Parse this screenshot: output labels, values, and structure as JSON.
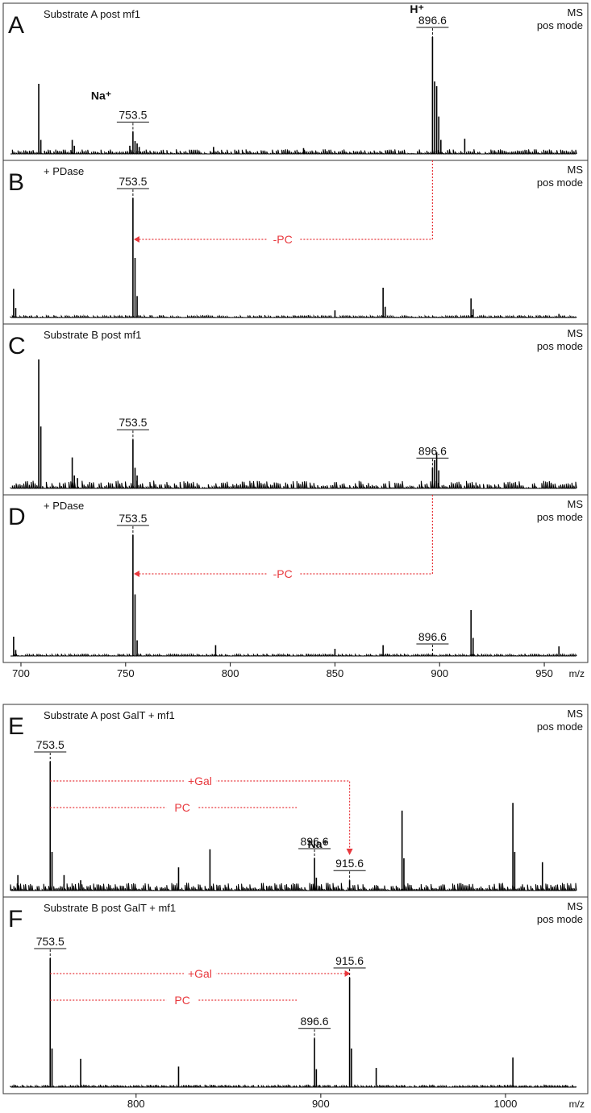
{
  "figure_group_1": {
    "x_tick_labels": [
      "700",
      "750",
      "800",
      "850",
      "900",
      "950"
    ],
    "x_unit": "m/z"
  },
  "figure_group_2": {
    "x_tick_labels": [
      "800",
      "900",
      "1000"
    ],
    "x_unit": "m/z"
  },
  "colors": {
    "trace": "#000000",
    "annotation": "#e8383d",
    "frame": "#333333"
  },
  "chart_data": [
    {
      "type": "line",
      "panel": "A",
      "label": "Substrate A post mf1",
      "mode_line1": "MS",
      "mode_line2": "pos mode",
      "xlim": [
        695,
        965
      ],
      "ylim": [
        0,
        100
      ],
      "x_ticks": [
        700,
        750,
        800,
        850,
        900,
        950
      ],
      "peaks": [
        [
          708.5,
          60
        ],
        [
          709.5,
          12
        ],
        [
          724.5,
          12
        ],
        [
          725.5,
          7
        ],
        [
          752,
          7
        ],
        [
          753.5,
          19
        ],
        [
          754.5,
          11
        ],
        [
          755.5,
          9
        ],
        [
          756.5,
          6
        ],
        [
          792,
          6
        ],
        [
          835,
          5
        ],
        [
          896.6,
          100
        ],
        [
          897.6,
          62
        ],
        [
          898.6,
          58
        ],
        [
          899.6,
          32
        ],
        [
          900.6,
          12
        ],
        [
          912,
          13
        ]
      ],
      "noise": 4,
      "peak_labels": [
        {
          "text": "753.5",
          "x": 753.5,
          "y": 19
        },
        {
          "text": "896.6",
          "x": 896.6,
          "y": 100
        }
      ],
      "ion_labels": [
        {
          "text": "Na⁺",
          "near": 753.5
        },
        {
          "text": "H⁺",
          "near": 896.6
        }
      ],
      "arrows": []
    },
    {
      "type": "line",
      "panel": "B",
      "label": "+ PDase",
      "mode_line1": "MS",
      "mode_line2": "pos mode",
      "xlim": [
        695,
        965
      ],
      "ylim": [
        0,
        100
      ],
      "x_ticks": [
        700,
        750,
        800,
        850,
        900,
        950
      ],
      "peaks": [
        [
          696.5,
          24
        ],
        [
          697.5,
          8
        ],
        [
          753.5,
          100
        ],
        [
          754.5,
          50
        ],
        [
          755.5,
          18
        ],
        [
          850,
          6
        ],
        [
          873,
          25
        ],
        [
          874,
          9
        ],
        [
          915,
          16
        ],
        [
          916,
          7
        ],
        [
          957,
          3
        ]
      ],
      "noise": 2,
      "peak_labels": [
        {
          "text": "753.5",
          "x": 753.5,
          "y": 100
        }
      ],
      "ion_labels": [],
      "arrows": [
        {
          "text": "-PC",
          "from": 896.6,
          "to": 753.5
        }
      ]
    },
    {
      "type": "line",
      "panel": "C",
      "label": "Substrate B post mf1",
      "mode_line1": "MS",
      "mode_line2": "pos mode",
      "xlim": [
        695,
        965
      ],
      "ylim": [
        0,
        100
      ],
      "x_ticks": [
        700,
        750,
        800,
        850,
        900,
        950
      ],
      "peaks": [
        [
          708.5,
          100
        ],
        [
          709.5,
          48
        ],
        [
          724.5,
          24
        ],
        [
          725.5,
          10
        ],
        [
          727,
          8
        ],
        [
          753.5,
          38
        ],
        [
          754.5,
          16
        ],
        [
          755.5,
          10
        ],
        [
          896.6,
          16
        ],
        [
          897.6,
          22
        ],
        [
          898.6,
          28
        ],
        [
          899.6,
          14
        ]
      ],
      "noise": 6,
      "peak_labels": [
        {
          "text": "753.5",
          "x": 753.5,
          "y": 38
        },
        {
          "text": "896.6",
          "x": 896.6,
          "y": 16
        }
      ],
      "ion_labels": [],
      "arrows": []
    },
    {
      "type": "line",
      "panel": "D",
      "label": "+ PDase",
      "mode_line1": "MS",
      "mode_line2": "pos mode",
      "xlim": [
        695,
        965
      ],
      "ylim": [
        0,
        100
      ],
      "x_ticks": [
        700,
        750,
        800,
        850,
        900,
        950
      ],
      "peaks": [
        [
          696.5,
          16
        ],
        [
          697.5,
          5
        ],
        [
          753.5,
          100
        ],
        [
          754.5,
          51
        ],
        [
          755.5,
          13
        ],
        [
          793,
          9
        ],
        [
          850,
          6
        ],
        [
          873,
          9
        ],
        [
          896.6,
          2
        ],
        [
          915,
          38
        ],
        [
          916,
          15
        ],
        [
          957,
          8
        ]
      ],
      "noise": 2,
      "peak_labels": [
        {
          "text": "753.5",
          "x": 753.5,
          "y": 100
        },
        {
          "text": "896.6",
          "x": 896.6,
          "y": 2
        }
      ],
      "ion_labels": [],
      "arrows": [
        {
          "text": "-PC",
          "from": 896.6,
          "to": 753.5
        }
      ]
    },
    {
      "type": "line",
      "panel": "E",
      "label": "Substrate A post GalT + mf1",
      "mode_line1": "MS",
      "mode_line2": "pos mode",
      "xlim": [
        732,
        1038
      ],
      "ylim": [
        0,
        100
      ],
      "x_ticks": [
        800,
        900,
        1000
      ],
      "peaks": [
        [
          736,
          12
        ],
        [
          753.5,
          100
        ],
        [
          754.5,
          30
        ],
        [
          761,
          12
        ],
        [
          770,
          8
        ],
        [
          823,
          18
        ],
        [
          840,
          32
        ],
        [
          896.6,
          25
        ],
        [
          897.6,
          10
        ],
        [
          915.6,
          8
        ],
        [
          944,
          62
        ],
        [
          945,
          25
        ],
        [
          1004,
          68
        ],
        [
          1005,
          30
        ],
        [
          1020,
          22
        ]
      ],
      "noise": 6,
      "peak_labels": [
        {
          "text": "753.5",
          "x": 753.5,
          "y": 100
        },
        {
          "text": "896.6",
          "x": 896.6,
          "y": 25
        },
        {
          "text": "915.6",
          "x": 915.6,
          "y": 8
        }
      ],
      "ion_labels": [
        {
          "text": "Na⁺",
          "near": 915.6
        }
      ],
      "arrows": [
        {
          "text": "+Gal",
          "from": 753.5,
          "to": 915.6
        },
        {
          "text": "PC",
          "from": 753.5,
          "to": 896.6
        }
      ]
    },
    {
      "type": "line",
      "panel": "F",
      "label": "Substrate B post GalT + mf1",
      "mode_line1": "MS",
      "mode_line2": "pos mode",
      "xlim": [
        732,
        1038
      ],
      "ylim": [
        0,
        100
      ],
      "x_ticks": [
        800,
        900,
        1000
      ],
      "peaks": [
        [
          753.5,
          100
        ],
        [
          754.5,
          30
        ],
        [
          770,
          22
        ],
        [
          823,
          16
        ],
        [
          896.6,
          38
        ],
        [
          897.6,
          14
        ],
        [
          915.6,
          85
        ],
        [
          916.6,
          30
        ],
        [
          930,
          15
        ],
        [
          1004,
          23
        ]
      ],
      "noise": 2,
      "peak_labels": [
        {
          "text": "753.5",
          "x": 753.5,
          "y": 100
        },
        {
          "text": "896.6",
          "x": 896.6,
          "y": 38
        },
        {
          "text": "915.6",
          "x": 915.6,
          "y": 85
        }
      ],
      "ion_labels": [],
      "arrows": [
        {
          "text": "+Gal",
          "from": 753.5,
          "to": 915.6
        },
        {
          "text": "PC",
          "from": 753.5,
          "to": 896.6
        }
      ]
    }
  ]
}
